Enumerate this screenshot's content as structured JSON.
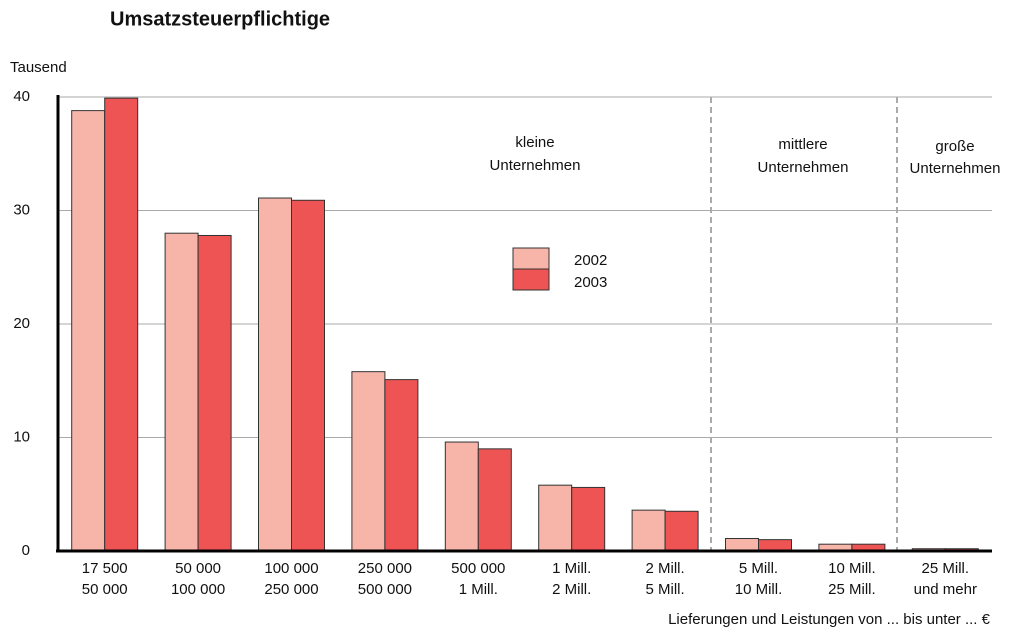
{
  "chart_data": {
    "type": "bar",
    "title": "Umsatzsteuerpflichtige",
    "y_label": "Tausend",
    "x_label": "Lieferungen und Leistungen von ... bis unter ...  €",
    "categories": [
      [
        "17 500",
        "50 000"
      ],
      [
        "50 000",
        "100 000"
      ],
      [
        "100 000",
        "250 000"
      ],
      [
        "250 000",
        "500 000"
      ],
      [
        "500 000",
        "1 Mill."
      ],
      [
        "1 Mill.",
        "2 Mill."
      ],
      [
        "2 Mill.",
        "5 Mill."
      ],
      [
        "5 Mill.",
        "10 Mill."
      ],
      [
        "10 Mill.",
        "25 Mill."
      ],
      [
        "25 Mill.",
        "und mehr"
      ]
    ],
    "series": [
      {
        "name": "2002",
        "color": "#f7b5aa",
        "values": [
          38.8,
          28.0,
          31.1,
          15.8,
          9.6,
          5.8,
          3.6,
          1.1,
          0.6,
          0.2
        ]
      },
      {
        "name": "2003",
        "color": "#ee5454",
        "values": [
          39.9,
          27.8,
          30.9,
          15.1,
          9.0,
          5.6,
          3.5,
          1.0,
          0.6,
          0.2
        ]
      }
    ],
    "annotations": [
      [
        "kleine",
        "Unternehmen"
      ],
      [
        "mittlere",
        "Unternehmen"
      ],
      [
        "große",
        "Unternehmen"
      ]
    ],
    "ylim": [
      0,
      40
    ],
    "yticks": [
      0,
      10,
      20,
      30,
      40
    ],
    "grid": true
  }
}
